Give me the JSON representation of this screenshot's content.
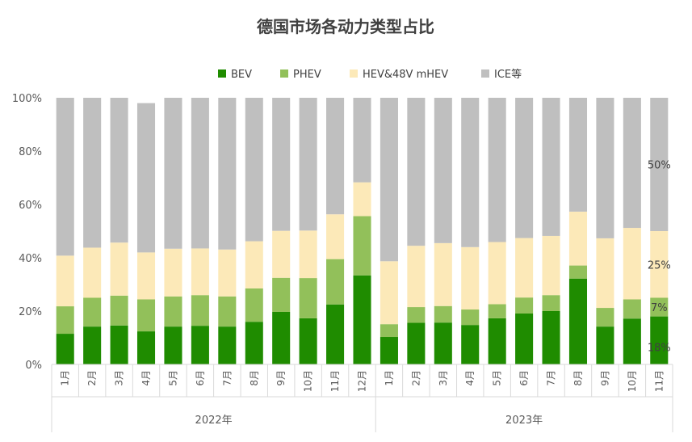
{
  "chart_data": {
    "type": "bar",
    "stacked": true,
    "title": "德国市场各动力类型占比",
    "ylim": [
      0,
      100
    ],
    "y_ticks": [
      "0%",
      "20%",
      "40%",
      "60%",
      "80%",
      "100%"
    ],
    "legend_position": "top",
    "grid": false,
    "categories": [
      "1月",
      "2月",
      "3月",
      "4月",
      "5月",
      "6月",
      "7月",
      "8月",
      "9月",
      "10月",
      "11月",
      "12月",
      "1月",
      "2月",
      "3月",
      "4月",
      "5月",
      "6月",
      "7月",
      "8月",
      "9月",
      "10月",
      "11月"
    ],
    "groups": [
      {
        "label": "2022年",
        "count": 12
      },
      {
        "label": "2023年",
        "count": 11
      }
    ],
    "series": [
      {
        "name": "BEV",
        "color": "#1f8c00",
        "values": [
          11.5,
          14.2,
          14.6,
          12.4,
          14.2,
          14.5,
          14.2,
          16.0,
          19.7,
          17.3,
          22.5,
          33.4,
          10.3,
          15.6,
          15.7,
          14.8,
          17.3,
          19.1,
          20.0,
          32.2,
          14.2,
          17.2,
          18.0
        ]
      },
      {
        "name": "PHEV",
        "color": "#92c05a",
        "values": [
          10.3,
          10.8,
          11.2,
          12.0,
          11.3,
          11.5,
          11.3,
          12.5,
          12.8,
          15.1,
          17.0,
          22.2,
          4.8,
          5.9,
          6.2,
          5.8,
          5.3,
          6.0,
          6.0,
          4.9,
          7.0,
          7.2,
          7.0
        ]
      },
      {
        "name": "HEV&48V mHEV",
        "color": "#fce9b8",
        "values": [
          19.0,
          18.8,
          19.9,
          17.6,
          17.9,
          17.5,
          17.6,
          17.7,
          17.6,
          17.8,
          16.8,
          12.7,
          23.6,
          23.0,
          23.6,
          23.4,
          23.3,
          22.3,
          22.2,
          20.2,
          26.1,
          26.8,
          25.0
        ]
      },
      {
        "name": "ICE等",
        "color": "#bfbfbf",
        "values": [
          59.2,
          56.2,
          54.3,
          56.0,
          56.6,
          56.5,
          56.9,
          53.8,
          49.9,
          49.8,
          43.7,
          31.7,
          61.3,
          55.5,
          54.5,
          56.0,
          54.1,
          52.6,
          51.8,
          42.7,
          52.7,
          48.8,
          50.0
        ]
      }
    ],
    "annotations": [
      "50%",
      "25%",
      "7%",
      "18%"
    ]
  }
}
